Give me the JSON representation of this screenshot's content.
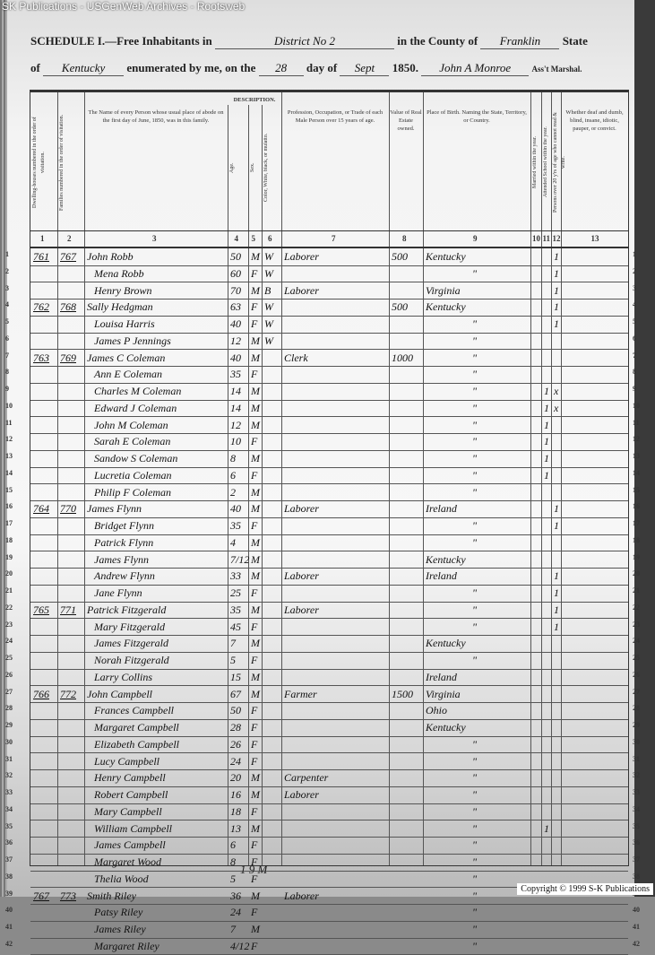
{
  "watermark": "SK Publications - USGenWeb Archives - Rootsweb",
  "copyright": "Copyright © 1999 S-K Publications",
  "header": {
    "schedule": "SCHEDULE I.—Free Inhabitants in",
    "district": "District No 2",
    "in_county": "in the County of",
    "county": "Franklin",
    "state_label": "State",
    "of": "of",
    "state": "Kentucky",
    "enumerated": "enumerated by me, on the",
    "day": "28",
    "day_of": "day of",
    "month": "Sept",
    "year": "1850.",
    "marshal": "John A Monroe",
    "marshal_label": "Ass't Marshal."
  },
  "columns": [
    {
      "head": "Dwelling-houses numbered in the order of visitation.",
      "num": "1"
    },
    {
      "head": "Families numbered in the order of visitation.",
      "num": "2"
    },
    {
      "head": "The Name of every Person whose usual place of abode on the first day of June, 1850, was in this family.",
      "num": "3"
    },
    {
      "head": "Age.",
      "num": "4"
    },
    {
      "head": "Sex.",
      "num": "5"
    },
    {
      "head": "Color, White, black, or mulatto.",
      "num": "6"
    },
    {
      "head": "Profession, Occupation, or Trade of each Male Person over 15 years of age.",
      "num": "7"
    },
    {
      "head": "Value of Real Estate owned.",
      "num": "8"
    },
    {
      "head": "Place of Birth. Naming the State, Territory, or Country.",
      "num": "9"
    },
    {
      "head": "Married within the year.",
      "num": "10"
    },
    {
      "head": "Attended School within the year.",
      "num": "11"
    },
    {
      "head": "Persons over 20 y'rs of age who cannot read & write.",
      "num": "12"
    },
    {
      "head": "Whether deaf and dumb, blind, insane, idiotic, pauper, or convict.",
      "num": "13"
    }
  ],
  "description_label": "DESCRIPTION.",
  "rows": [
    [
      "761",
      "767",
      "John Robb",
      "50",
      "M",
      "W",
      "Laborer",
      "500",
      "Kentucky",
      "",
      "",
      "1"
    ],
    [
      "",
      "",
      "Mena Robb",
      "60",
      "F",
      "W",
      "",
      "",
      "\"",
      "",
      "",
      "1"
    ],
    [
      "",
      "",
      "Henry Brown",
      "70",
      "M",
      "B",
      "Laborer",
      "",
      "Virginia",
      "",
      "",
      "1"
    ],
    [
      "762",
      "768",
      "Sally Hedgman",
      "63",
      "F",
      "W",
      "",
      "500",
      "Kentucky",
      "",
      "",
      "1"
    ],
    [
      "",
      "",
      "Louisa Harris",
      "40",
      "F",
      "W",
      "",
      "",
      "\"",
      "",
      "",
      "1"
    ],
    [
      "",
      "",
      "James P Jennings",
      "12",
      "M",
      "W",
      "",
      "",
      "\"",
      "",
      "",
      ""
    ],
    [
      "763",
      "769",
      "James C Coleman",
      "40",
      "M",
      "",
      "Clerk",
      "1000",
      "\"",
      "",
      "",
      ""
    ],
    [
      "",
      "",
      "Ann E Coleman",
      "35",
      "F",
      "",
      "",
      "",
      "\"",
      "",
      "",
      ""
    ],
    [
      "",
      "",
      "Charles M Coleman",
      "14",
      "M",
      "",
      "",
      "",
      "\"",
      "",
      "1",
      "x"
    ],
    [
      "",
      "",
      "Edward J Coleman",
      "14",
      "M",
      "",
      "",
      "",
      "\"",
      "",
      "1",
      "x"
    ],
    [
      "",
      "",
      "John M Coleman",
      "12",
      "M",
      "",
      "",
      "",
      "\"",
      "",
      "1",
      ""
    ],
    [
      "",
      "",
      "Sarah E Coleman",
      "10",
      "F",
      "",
      "",
      "",
      "\"",
      "",
      "1",
      ""
    ],
    [
      "",
      "",
      "Sandow S Coleman",
      "8",
      "M",
      "",
      "",
      "",
      "\"",
      "",
      "1",
      ""
    ],
    [
      "",
      "",
      "Lucretia Coleman",
      "6",
      "F",
      "",
      "",
      "",
      "\"",
      "",
      "1",
      ""
    ],
    [
      "",
      "",
      "Philip F Coleman",
      "2",
      "M",
      "",
      "",
      "",
      "\"",
      "",
      "",
      ""
    ],
    [
      "764",
      "770",
      "James Flynn",
      "40",
      "M",
      "",
      "Laborer",
      "",
      "Ireland",
      "",
      "",
      "1"
    ],
    [
      "",
      "",
      "Bridget Flynn",
      "35",
      "F",
      "",
      "",
      "",
      "\"",
      "",
      "",
      "1"
    ],
    [
      "",
      "",
      "Patrick Flynn",
      "4",
      "M",
      "",
      "",
      "",
      "\"",
      "",
      "",
      ""
    ],
    [
      "",
      "",
      "James Flynn",
      "7/12",
      "M",
      "",
      "",
      "",
      "Kentucky",
      "",
      "",
      ""
    ],
    [
      "",
      "",
      "Andrew Flynn",
      "33",
      "M",
      "",
      "Laborer",
      "",
      "Ireland",
      "",
      "",
      "1"
    ],
    [
      "",
      "",
      "Jane Flynn",
      "25",
      "F",
      "",
      "",
      "",
      "\"",
      "",
      "",
      "1"
    ],
    [
      "765",
      "771",
      "Patrick Fitzgerald",
      "35",
      "M",
      "",
      "Laborer",
      "",
      "\"",
      "",
      "",
      "1"
    ],
    [
      "",
      "",
      "Mary Fitzgerald",
      "45",
      "F",
      "",
      "",
      "",
      "\"",
      "",
      "",
      "1"
    ],
    [
      "",
      "",
      "James Fitzgerald",
      "7",
      "M",
      "",
      "",
      "",
      "Kentucky",
      "",
      "",
      ""
    ],
    [
      "",
      "",
      "Norah Fitzgerald",
      "5",
      "F",
      "",
      "",
      "",
      "\"",
      "",
      "",
      ""
    ],
    [
      "",
      "",
      "Larry Collins",
      "15",
      "M",
      "",
      "",
      "",
      "Ireland",
      "",
      "",
      ""
    ],
    [
      "766",
      "772",
      "John Campbell",
      "67",
      "M",
      "",
      "Farmer",
      "1500",
      "Virginia",
      "",
      "",
      ""
    ],
    [
      "",
      "",
      "Frances Campbell",
      "50",
      "F",
      "",
      "",
      "",
      "Ohio",
      "",
      "",
      ""
    ],
    [
      "",
      "",
      "Margaret Campbell",
      "28",
      "F",
      "",
      "",
      "",
      "Kentucky",
      "",
      "",
      ""
    ],
    [
      "",
      "",
      "Elizabeth Campbell",
      "26",
      "F",
      "",
      "",
      "",
      "\"",
      "",
      "",
      ""
    ],
    [
      "",
      "",
      "Lucy Campbell",
      "24",
      "F",
      "",
      "",
      "",
      "\"",
      "",
      "",
      ""
    ],
    [
      "",
      "",
      "Henry Campbell",
      "20",
      "M",
      "",
      "Carpenter",
      "",
      "\"",
      "",
      "",
      ""
    ],
    [
      "",
      "",
      "Robert Campbell",
      "16",
      "M",
      "",
      "Laborer",
      "",
      "\"",
      "",
      "",
      ""
    ],
    [
      "",
      "",
      "Mary Campbell",
      "18",
      "F",
      "",
      "",
      "",
      "\"",
      "",
      "",
      ""
    ],
    [
      "",
      "",
      "William Campbell",
      "13",
      "M",
      "",
      "",
      "",
      "\"",
      "",
      "1",
      ""
    ],
    [
      "",
      "",
      "James Campbell",
      "6",
      "F",
      "",
      "",
      "",
      "\"",
      "",
      "",
      ""
    ],
    [
      "",
      "",
      "Margaret Wood",
      "8",
      "F",
      "",
      "",
      "",
      "\"",
      "",
      "",
      ""
    ],
    [
      "",
      "",
      "Thelia Wood",
      "5",
      "F",
      "",
      "",
      "",
      "\"",
      "",
      "",
      ""
    ],
    [
      "767",
      "773",
      "Smith Riley",
      "36",
      "M",
      "",
      "Laborer",
      "",
      "\"",
      "",
      "",
      ""
    ],
    [
      "",
      "",
      "Patsy Riley",
      "24",
      "F",
      "",
      "",
      "",
      "\"",
      "",
      "",
      ""
    ],
    [
      "",
      "",
      "James Riley",
      "7",
      "M",
      "",
      "",
      "",
      "\"",
      "",
      "",
      ""
    ],
    [
      "",
      "",
      "Margaret Riley",
      "4/12",
      "F",
      "",
      "",
      "",
      "\"",
      "",
      "",
      ""
    ]
  ],
  "tally": "1  9 M"
}
